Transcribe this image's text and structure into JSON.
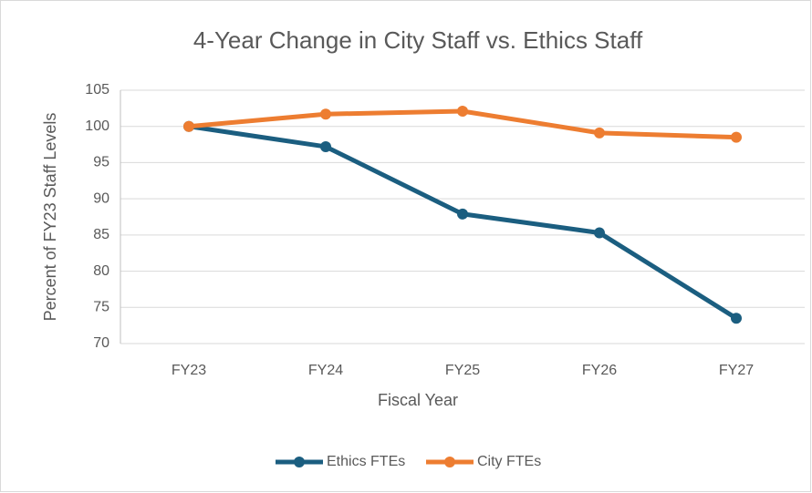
{
  "chart_data": {
    "type": "line",
    "title": "4-Year Change in City Staff vs. Ethics Staff",
    "x_label": "Fiscal Year",
    "y_label": "Percent of FY23 Staff Levels",
    "categories": [
      "FY23",
      "FY24",
      "FY25",
      "FY26",
      "FY27"
    ],
    "series": [
      {
        "name": "Ethics FTEs",
        "color": "#1b5e80",
        "values": [
          100,
          97.2,
          87.9,
          85.3,
          73.5
        ]
      },
      {
        "name": "City FTEs",
        "color": "#ed7d31",
        "values": [
          100,
          101.7,
          102.1,
          99.1,
          98.5
        ]
      }
    ],
    "ylim": [
      70,
      105
    ],
    "yticks": [
      70,
      75,
      80,
      85,
      90,
      95,
      100,
      105
    ],
    "grid": true,
    "legend": "bottom"
  }
}
